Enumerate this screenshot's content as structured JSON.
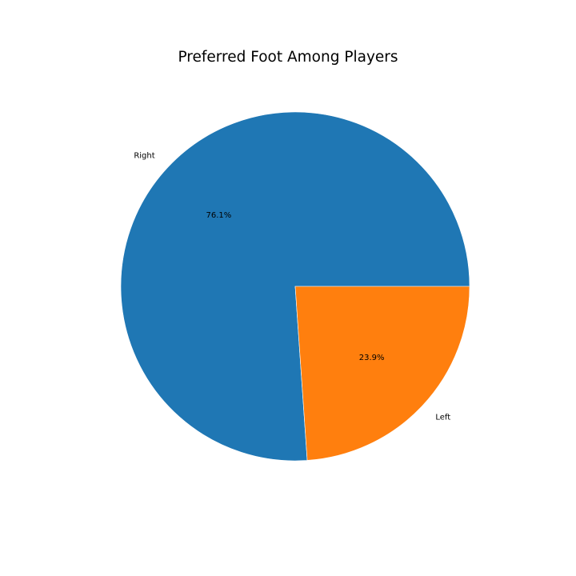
{
  "chart_data": {
    "type": "pie",
    "title": "Preferred Foot Among Players",
    "categories": [
      "Right",
      "Left"
    ],
    "values": [
      76.1,
      23.9
    ],
    "value_labels": [
      "76.1%",
      "23.9%"
    ],
    "colors": [
      "#1f77b4",
      "#ff7f0e"
    ],
    "start_angle_deg": 0,
    "direction": "counterclockwise",
    "legend": "none"
  }
}
